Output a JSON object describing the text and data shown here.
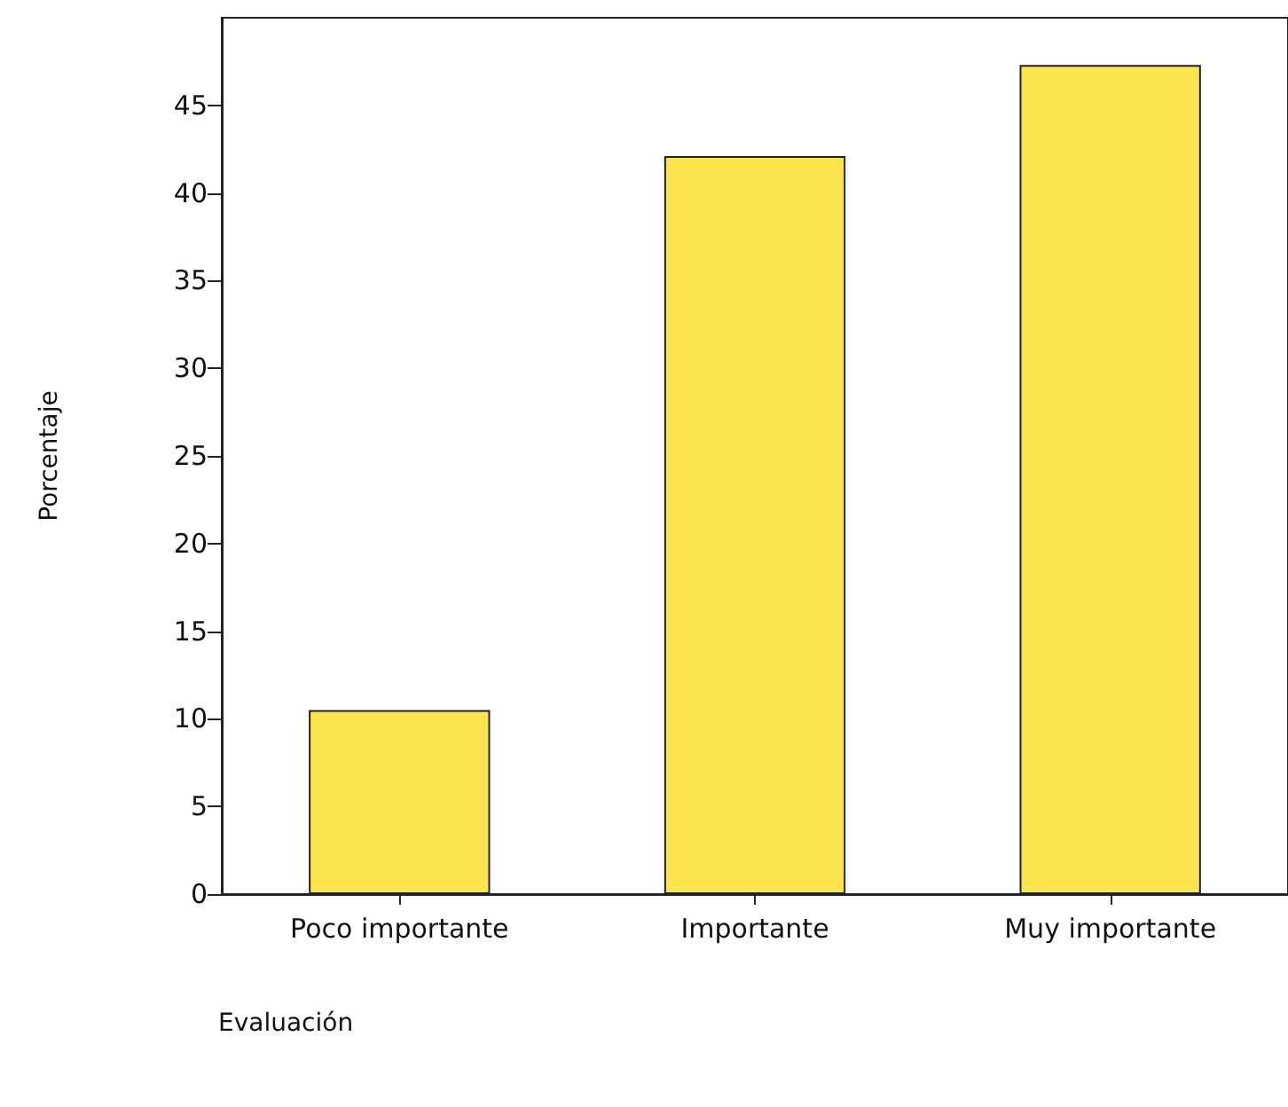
{
  "chart_data": {
    "type": "bar",
    "xlabel": "Evaluación",
    "ylabel": "Porcentaje",
    "categories": [
      "Poco importante",
      "Importante",
      "Muy importante"
    ],
    "values": [
      10.5,
      42.1,
      47.3
    ],
    "color": "#fce44f",
    "ylim": [
      0,
      50
    ],
    "yticks": [
      0,
      5,
      10,
      15,
      20,
      25,
      30,
      35,
      40,
      45
    ],
    "grid": false
  }
}
